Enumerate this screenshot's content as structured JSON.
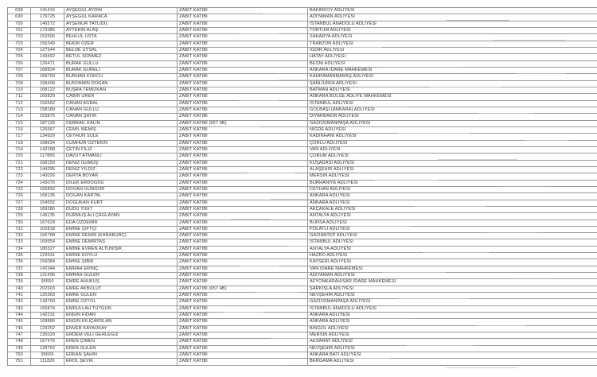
{
  "table": {
    "rows": [
      {
        "no": "698",
        "reg": "141416",
        "name": "AYŞEGÜL AYDIN",
        "title": "ZABIT KATİBİ",
        "court": "BAKIRKÖY ADLİYESİ"
      },
      {
        "no": "699",
        "reg": "179725",
        "name": "AYŞEGÜL KARACA",
        "title": "ZABIT KATİBİ",
        "court": "ADIYAMAN ADLİYESİ"
      },
      {
        "no": "700",
        "reg": "146572",
        "name": "AYŞENUR TATLIDİL",
        "title": "ZABIT KATİBİ",
        "court": "İSTANBUL ANADOLU ADLİYESİ"
      },
      {
        "no": "701",
        "reg": "173385",
        "name": "AYTEKİN ALAŞ",
        "title": "ZABIT KATİBİ",
        "court": "TORTUM ADLİYESİ"
      },
      {
        "no": "702",
        "reg": "152506",
        "name": "BEHLÜL USTA",
        "title": "ZABIT KATİBİ",
        "court": "SAKARYA ADLİYESİ"
      },
      {
        "no": "703",
        "reg": "155349",
        "name": "BEKİR ÖZER",
        "title": "ZABIT KATİBİ",
        "court": "TRABZON ADLİYESİ"
      },
      {
        "no": "704",
        "reg": "127544",
        "name": "BELDE UYSAL",
        "title": "ZABIT KATİBİ",
        "court": "IĞDIR ADLİYESİ"
      },
      {
        "no": "705",
        "reg": "143492",
        "name": "BETÜL SÖNMEZ",
        "title": "ZABIT KATİBİ",
        "court": "HATAY ADLİYESİ"
      },
      {
        "no": "706",
        "reg": "126471",
        "name": "BURAK GÜLLÜ",
        "title": "ZABIT KATİBİ",
        "court": "BESNİ ADLİYESİ"
      },
      {
        "no": "707",
        "reg": "168824",
        "name": "BURAK GÜRELİ",
        "title": "ZABIT KATİBİ",
        "court": "ANKARA İDARE MAHKEMESİ"
      },
      {
        "no": "708",
        "reg": "168700",
        "name": "BURHAN KÖKCÜ",
        "title": "ZABIT KATİBİ",
        "court": "KAHRAMANMARAŞ ADLİYESİ"
      },
      {
        "no": "709",
        "reg": "168499",
        "name": "BÜNYAMİN DOĞAN",
        "title": "ZABIT KATİBİ",
        "court": "ŞANLIURFA ADLİYESİ"
      },
      {
        "no": "710",
        "reg": "168122",
        "name": "BÜŞRA TEMİZKAN",
        "title": "ZABIT KATİBİ",
        "court": "BATMAN ADLİYESİ"
      },
      {
        "no": "711",
        "reg": "166820",
        "name": "CABİR ÜRER",
        "title": "ZABIT KATİBİ",
        "court": "ANKARA BÖLGE ADLİYE MAHKEMESİ"
      },
      {
        "no": "712",
        "reg": "156662",
        "name": "CANAN AĞBAL",
        "title": "ZABIT KATİBİ",
        "court": "İSTANBUL ADLİYESİ"
      },
      {
        "no": "713",
        "reg": "158189",
        "name": "CANAN GÜLLÜ",
        "title": "ZABIT KATİBİ",
        "court": "GÖLBAŞI (ANKARA) ADLİYESİ"
      },
      {
        "no": "714",
        "reg": "153875",
        "name": "CANAN ŞATIR",
        "title": "ZABIT KATİBİ",
        "court": "DİYARBAKIR ADLİYESİ"
      },
      {
        "no": "715",
        "reg": "187126",
        "name": "CEBRAİL KALIN",
        "title": "ZABIT KATİBİ (657 4B)",
        "court": "GAZİOSMANPAŞA ADLİYESİ"
      },
      {
        "no": "716",
        "reg": "126567",
        "name": "CEMİL MEMİŞ",
        "title": "ZABIT KATİBİ",
        "court": "NİĞDE ADLİYESİ"
      },
      {
        "no": "717",
        "reg": "134929",
        "name": "CEYHUN SÜLE",
        "title": "ZABIT KATİBİ",
        "court": "KADINHANI ADLİYESİ"
      },
      {
        "no": "718",
        "reg": "168634",
        "name": "CUMHUR ÖZTEKİN",
        "title": "ZABIT KATİBİ",
        "court": "ÇORLU ADLİYESİ"
      },
      {
        "no": "719",
        "reg": "142288",
        "name": "ÇETİN FİLİZ",
        "title": "ZABIT KATİBİ",
        "court": "VAN ADLİYESİ"
      },
      {
        "no": "720",
        "reg": "117866",
        "name": "DAVUT ATMANLI",
        "title": "ZABIT KATİBİ",
        "court": "ÇORUM ADLİYESİ"
      },
      {
        "no": "721",
        "reg": "168159",
        "name": "DENİZ GÜMÜŞ",
        "title": "ZABIT KATİBİ",
        "court": "KUŞADASI ADLİYESİ"
      },
      {
        "no": "722",
        "reg": "144295",
        "name": "DENİZ YILDIZ",
        "title": "ZABIT KATİBİ",
        "court": "ALAŞEHİR ADLİYESİ"
      },
      {
        "no": "723",
        "reg": "140026",
        "name": "DERYA BOYAR",
        "title": "ZABIT KATİBİ",
        "court": "MERSİN ADLİYESİ"
      },
      {
        "no": "724",
        "reg": "143076",
        "name": "DİLEK ERDOĞDU",
        "title": "ZABIT KATİBİ",
        "court": "BURHANİYE ADLİYESİ"
      },
      {
        "no": "725",
        "reg": "156892",
        "name": "DOĞAN GÜNGÖR",
        "title": "ZABIT KATİBİ",
        "court": "CEYHAN ADLİYESİ"
      },
      {
        "no": "726",
        "reg": "168135",
        "name": "DOĞAN KARTAL",
        "title": "ZABIT KATİBİ",
        "court": "ANKARA ADLİYESİ"
      },
      {
        "no": "727",
        "reg": "154592",
        "name": "DOĞUKAN KURT",
        "title": "ZABIT KATİBİ",
        "court": "ANKARA ADLİYESİ"
      },
      {
        "no": "728",
        "reg": "169286",
        "name": "DUDU YİĞİT",
        "title": "ZABIT KATİBİ",
        "court": "AKÇAKALE ADLİYESİ"
      },
      {
        "no": "729",
        "reg": "149135",
        "name": "DURMUŞ ALİ ÇAĞLAYAN",
        "title": "ZABIT KATİBİ",
        "court": "ANTALYA ADLİYESİ"
      },
      {
        "no": "730",
        "reg": "167629",
        "name": "EDA ÖZDEMİR",
        "title": "ZABIT KATİBİ",
        "court": "BURSA ADLİYESİ"
      },
      {
        "no": "731",
        "reg": "102818",
        "name": "EMİNE ÇİFTÇİ",
        "title": "ZABIT KATİBİ",
        "court": "POLATLI ADLİYESİ"
      },
      {
        "no": "732",
        "reg": "166788",
        "name": "EMİNE DEMİR (KARABURÇ)",
        "title": "ZABIT KATİBİ",
        "court": "GAZİANTEP ADLİYESİ"
      },
      {
        "no": "733",
        "reg": "169554",
        "name": "EMİNE DEMİRTAŞ",
        "title": "ZABIT KATİBİ",
        "court": "İSTANBUL ADLİYESİ"
      },
      {
        "no": "734",
        "reg": "180327",
        "name": "EMİNE EVREN ALTUNIŞIK",
        "title": "ZABIT KATİBİ",
        "court": "ANTALYA ADLİYESİ"
      },
      {
        "no": "735",
        "reg": "123531",
        "name": "EMİNE KÖYLÜ",
        "title": "ZABIT KATİBİ",
        "court": "HAZRO ADLİYESİ"
      },
      {
        "no": "736",
        "reg": "156084",
        "name": "EMİNE ŞİBİK",
        "title": "ZABIT KATİBİ",
        "court": "KAYSERİ ADLİYESİ"
      },
      {
        "no": "737",
        "reg": "142344",
        "name": "EMRAH ERİNÇ",
        "title": "ZABIT KATİBİ",
        "court": "VAN İDARE MAHKEMESİ"
      },
      {
        "no": "738",
        "reg": "121496",
        "name": "EMRAH GÜLER",
        "title": "ZABIT KATİBİ",
        "court": "ADIYAMAN ADLİYESİ"
      },
      {
        "no": "739",
        "reg": "95550",
        "name": "EMRE AHUKUŞ",
        "title": "ZABIT KATİBİ",
        "court": "AFYONKARAHİSAR İDARE MAHKEMESİ"
      },
      {
        "no": "740",
        "reg": "202603",
        "name": "EMRE AKBULUT",
        "title": "ZABIT KATİBİ (657 4B)",
        "court": "ŞARKIŞLA ADLİYESİ"
      },
      {
        "no": "741",
        "reg": "120363",
        "name": "EMRE GÜLEN",
        "title": "ZABIT KATİBİ",
        "court": "NEVŞEHİR ADLİYESİ"
      },
      {
        "no": "742",
        "reg": "143769",
        "name": "EMRE ÖZYOL",
        "title": "ZABIT KATİBİ",
        "court": "GAZİOSMANPAŞA ADLİYESİ"
      },
      {
        "no": "743",
        "reg": "166874",
        "name": "EMRULLAH TUTGUN",
        "title": "ZABIT KATİBİ",
        "court": "İSTANBUL ANADOLU ADLİYESİ"
      },
      {
        "no": "744",
        "reg": "142231",
        "name": "ENGİN FİDAN",
        "title": "ZABIT KATİBİ",
        "court": "ANKARA ADLİYESİ"
      },
      {
        "no": "745",
        "reg": "168886",
        "name": "ENGİN KILIÇARSLAN",
        "title": "ZABIT KATİBİ",
        "court": "ANKARA ADLİYESİ"
      },
      {
        "no": "746",
        "reg": "129252",
        "name": "ENVER KAYAOKAY",
        "title": "ZABIT KATİBİ",
        "court": "BİNGÖL ADLİYESİ"
      },
      {
        "no": "747",
        "reg": "135020",
        "name": "ERDEM VELİ GERLEGİZ",
        "title": "ZABIT KATİBİ",
        "court": "MERSİN ADLİYESİ"
      },
      {
        "no": "748",
        "reg": "167476",
        "name": "EREN ÇİMEN",
        "title": "ZABIT KATİBİ",
        "court": "AKSARAY ADLİYESİ"
      },
      {
        "no": "749",
        "reg": "128762",
        "name": "EREN GÜLEN",
        "title": "ZABIT KATİBİ",
        "court": "NEVŞEHİR ADLİYESİ"
      },
      {
        "no": "750",
        "reg": "95655",
        "name": "ERKAN ŞAHİN",
        "title": "ZABIT KATİBİ",
        "court": "ANKARA BATI ADLİYESİ"
      },
      {
        "no": "751",
        "reg": "111826",
        "name": "EROL ŞEVİK",
        "title": "ZABIT KATİBİ",
        "court": "BERGAMA ADLİYESİ"
      }
    ]
  }
}
